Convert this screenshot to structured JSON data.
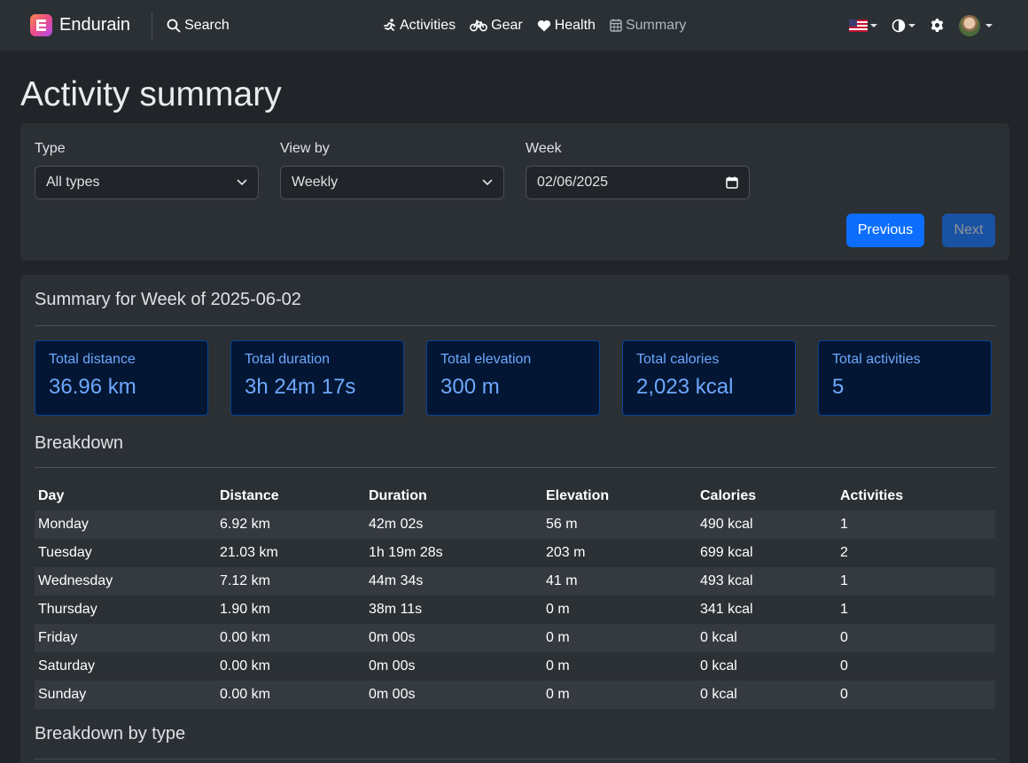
{
  "nav": {
    "brand": "Endurain",
    "search": "Search",
    "links": [
      {
        "label": "Activities",
        "icon": "running-icon"
      },
      {
        "label": "Gear",
        "icon": "bicycle-icon"
      },
      {
        "label": "Health",
        "icon": "heart-icon"
      },
      {
        "label": "Summary",
        "icon": "calendar-icon"
      }
    ]
  },
  "page": {
    "title": "Activity summary"
  },
  "filters": {
    "type_label": "Type",
    "type_value": "All types",
    "view_label": "View by",
    "view_value": "Weekly",
    "week_label": "Week",
    "week_value": "02/06/2025",
    "previous": "Previous",
    "next": "Next"
  },
  "summary": {
    "title": "Summary for Week of 2025-06-02",
    "cards": [
      {
        "label": "Total distance",
        "value": "36.96 km"
      },
      {
        "label": "Total duration",
        "value": "3h 24m 17s"
      },
      {
        "label": "Total elevation",
        "value": "300 m"
      },
      {
        "label": "Total calories",
        "value": "2,023 kcal"
      },
      {
        "label": "Total activities",
        "value": "5"
      }
    ],
    "breakdown_title": "Breakdown",
    "columns": [
      "Day",
      "Distance",
      "Duration",
      "Elevation",
      "Calories",
      "Activities"
    ],
    "rows": [
      [
        "Monday",
        "6.92 km",
        "42m 02s",
        "56 m",
        "490 kcal",
        "1"
      ],
      [
        "Tuesday",
        "21.03 km",
        "1h 19m 28s",
        "203 m",
        "699 kcal",
        "2"
      ],
      [
        "Wednesday",
        "7.12 km",
        "44m 34s",
        "41 m",
        "493 kcal",
        "1"
      ],
      [
        "Thursday",
        "1.90 km",
        "38m 11s",
        "0 m",
        "341 kcal",
        "1"
      ],
      [
        "Friday",
        "0.00 km",
        "0m 00s",
        "0 m",
        "0 kcal",
        "0"
      ],
      [
        "Saturday",
        "0.00 km",
        "0m 00s",
        "0 m",
        "0 kcal",
        "0"
      ],
      [
        "Sunday",
        "0.00 km",
        "0m 00s",
        "0 m",
        "0 kcal",
        "0"
      ]
    ],
    "by_type_title": "Breakdown by type"
  }
}
